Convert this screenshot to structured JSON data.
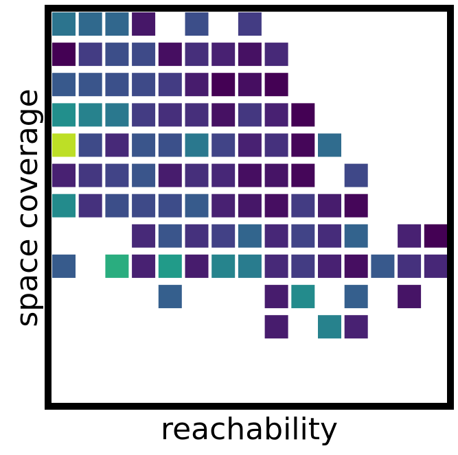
{
  "chart_data": {
    "type": "heatmap",
    "title": "",
    "xlabel": "reachability",
    "ylabel": "space coverage",
    "x_ticks": "none",
    "y_ticks": "none",
    "colormap": "viridis",
    "n_cols": 15,
    "n_rows": 12,
    "grid": false,
    "row_order": "top-to-bottom",
    "cells": [
      [
        0.48,
        0.43,
        0.42,
        0.08,
        null,
        0.3,
        null,
        0.22,
        null,
        null,
        null,
        null,
        null,
        null,
        null
      ],
      [
        0.0,
        0.22,
        0.3,
        0.28,
        0.05,
        0.17,
        0.12,
        0.06,
        0.15,
        null,
        null,
        null,
        null,
        null,
        null
      ],
      [
        0.35,
        0.33,
        0.31,
        0.28,
        0.22,
        0.1,
        0.0,
        0.05,
        0.0,
        null,
        null,
        null,
        null,
        null,
        null
      ],
      [
        0.62,
        0.55,
        0.5,
        0.22,
        0.17,
        0.17,
        0.06,
        0.2,
        0.12,
        0.0,
        null,
        null,
        null,
        null,
        null
      ],
      [
        0.85,
        0.28,
        0.15,
        0.33,
        0.31,
        0.5,
        0.25,
        0.12,
        0.18,
        0.02,
        0.44,
        null,
        null,
        null,
        null
      ],
      [
        0.12,
        0.2,
        0.25,
        0.33,
        0.1,
        0.17,
        0.14,
        0.05,
        0.07,
        0.02,
        null,
        0.27,
        null,
        null,
        null
      ],
      [
        0.6,
        0.18,
        0.3,
        0.28,
        0.29,
        0.36,
        0.12,
        0.08,
        0.05,
        0.22,
        0.1,
        0.02,
        null,
        null,
        null
      ],
      [
        null,
        null,
        null,
        0.15,
        0.33,
        0.18,
        0.24,
        0.41,
        0.14,
        0.25,
        0.16,
        0.4,
        null,
        0.12,
        0.0
      ],
      [
        0.36,
        null,
        0.78,
        0.12,
        0.68,
        0.1,
        0.56,
        0.52,
        0.15,
        0.22,
        0.12,
        0.05,
        0.35,
        0.18,
        0.14
      ],
      [
        null,
        null,
        null,
        null,
        0.38,
        null,
        null,
        null,
        0.1,
        0.6,
        null,
        0.38,
        null,
        0.07,
        null
      ],
      [
        null,
        null,
        null,
        null,
        null,
        null,
        null,
        null,
        0.1,
        null,
        0.55,
        0.12,
        null,
        null,
        null
      ],
      [
        null,
        null,
        null,
        null,
        null,
        null,
        null,
        null,
        null,
        null,
        null,
        null,
        null,
        null,
        null
      ]
    ]
  }
}
